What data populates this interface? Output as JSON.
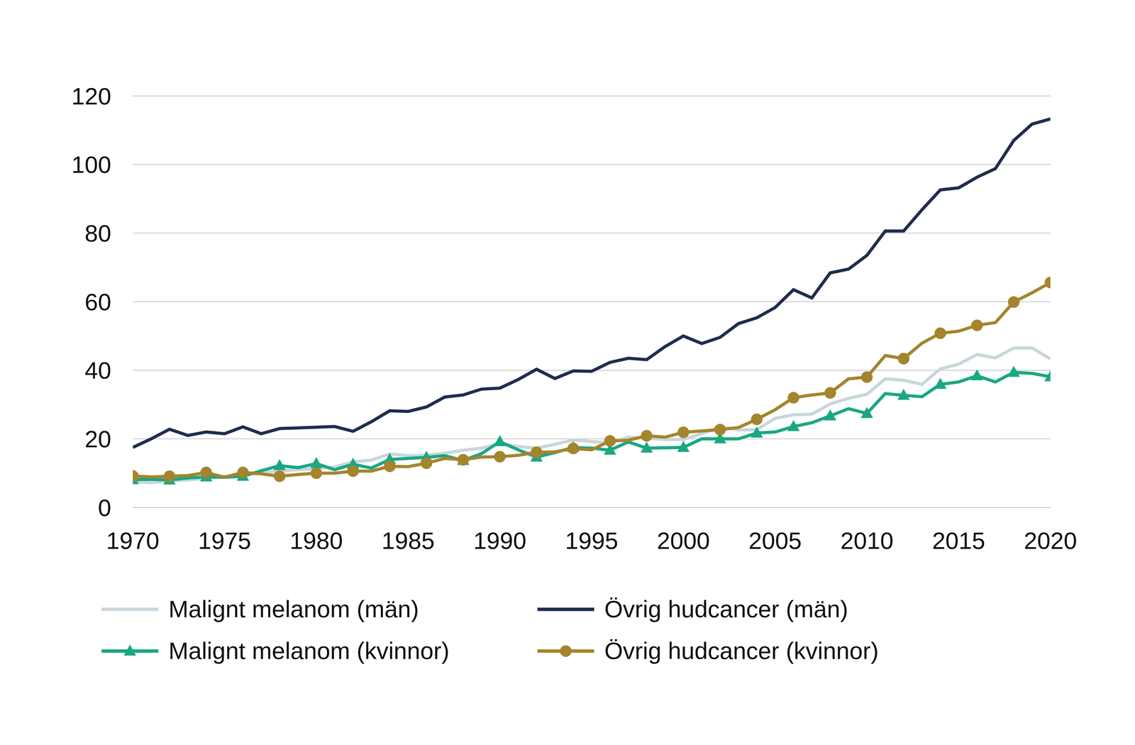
{
  "chart_data": {
    "type": "line",
    "x": [
      1970,
      1971,
      1972,
      1973,
      1974,
      1975,
      1976,
      1977,
      1978,
      1979,
      1980,
      1981,
      1982,
      1983,
      1984,
      1985,
      1986,
      1987,
      1988,
      1989,
      1990,
      1991,
      1992,
      1993,
      1994,
      1995,
      1996,
      1997,
      1998,
      1999,
      2000,
      2001,
      2002,
      2003,
      2004,
      2005,
      2006,
      2007,
      2008,
      2009,
      2010,
      2011,
      2012,
      2013,
      2014,
      2015,
      2016,
      2017,
      2018,
      2019,
      2020
    ],
    "series": [
      {
        "name": "Malignt melanom (män)",
        "color": "#c9d6dc",
        "marker": "none",
        "values": [
          7.5,
          7.2,
          7.8,
          8.0,
          8.5,
          9.1,
          9.5,
          10.0,
          10.7,
          11.0,
          11.3,
          11.8,
          13.3,
          13.8,
          15.6,
          15.1,
          15.2,
          15.8,
          16.7,
          17.3,
          18.5,
          17.8,
          17.3,
          18.4,
          19.7,
          19.2,
          18.8,
          20.5,
          20.2,
          19.8,
          19.8,
          21.5,
          23.5,
          22.6,
          22.7,
          26.0,
          27.0,
          27.2,
          30.2,
          31.8,
          33.0,
          37.5,
          37.1,
          35.9,
          40.4,
          41.8,
          44.6,
          43.6,
          46.5,
          46.5,
          43.3
        ]
      },
      {
        "name": "Övrig hudcancer (män)",
        "color": "#1f2d4e",
        "marker": "none",
        "values": [
          17.5,
          20.0,
          22.8,
          21.0,
          22.0,
          21.5,
          23.5,
          21.5,
          23.0,
          23.2,
          23.4,
          23.6,
          22.2,
          25.0,
          28.2,
          28.0,
          29.3,
          32.2,
          32.8,
          34.5,
          34.8,
          37.3,
          40.3,
          37.6,
          39.8,
          39.7,
          42.3,
          43.5,
          43.1,
          46.9,
          50.0,
          47.8,
          49.6,
          53.6,
          55.3,
          58.3,
          63.5,
          61.1,
          68.4,
          69.5,
          73.5,
          80.6,
          80.6,
          86.8,
          92.6,
          93.2,
          96.3,
          98.8,
          107.0,
          111.8,
          113.3
        ]
      },
      {
        "name": "Malignt melanom (kvinnor)",
        "color": "#1aa882",
        "marker": "triangle",
        "values": [
          8.1,
          8.2,
          8.0,
          8.6,
          8.9,
          8.8,
          9.1,
          10.7,
          12.2,
          11.6,
          12.8,
          11.0,
          12.6,
          11.5,
          14.0,
          14.3,
          14.6,
          15.1,
          13.7,
          15.7,
          19.2,
          16.8,
          14.7,
          16.0,
          17.5,
          17.3,
          16.7,
          19.1,
          17.3,
          17.4,
          17.5,
          20.0,
          20.0,
          20.0,
          21.7,
          22.0,
          23.6,
          24.7,
          26.7,
          28.8,
          27.4,
          33.2,
          32.7,
          32.3,
          35.9,
          36.6,
          38.4,
          36.6,
          39.4,
          39.1,
          38.1
        ]
      },
      {
        "name": "Övrig hudcancer (kvinnor)",
        "color": "#a4852c",
        "marker": "circle",
        "values": [
          9.2,
          8.9,
          9.1,
          9.3,
          10.2,
          8.8,
          10.2,
          9.8,
          9.1,
          9.6,
          10.0,
          10.0,
          10.6,
          10.6,
          12.0,
          11.9,
          12.9,
          14.3,
          13.9,
          14.7,
          14.8,
          15.2,
          16.1,
          16.2,
          17.2,
          16.8,
          19.4,
          19.6,
          20.9,
          20.5,
          21.9,
          22.3,
          22.7,
          23.3,
          25.7,
          28.5,
          32.0,
          32.8,
          33.4,
          37.5,
          38.0,
          44.3,
          43.4,
          47.9,
          50.8,
          51.4,
          53.1,
          53.9,
          59.9,
          62.6,
          65.6
        ]
      }
    ],
    "xlim": [
      1970,
      2020
    ],
    "xticks": [
      1970,
      1975,
      1980,
      1985,
      1990,
      1995,
      2000,
      2005,
      2010,
      2015,
      2020
    ],
    "ylim": [
      0,
      120
    ],
    "yticks": [
      0,
      20,
      40,
      60,
      80,
      100,
      120
    ],
    "grid": true,
    "legend": "bottom"
  }
}
